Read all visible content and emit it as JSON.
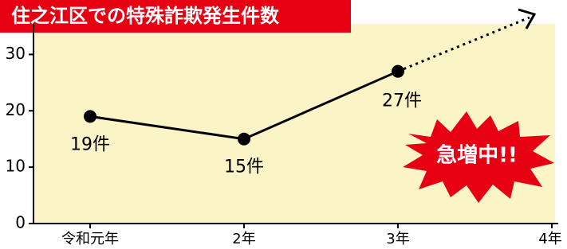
{
  "chart_data": {
    "type": "line",
    "title": "住之江区での特殊詐欺発生件数",
    "categories": [
      "令和元年",
      "2年",
      "3年",
      "4年"
    ],
    "values": [
      19,
      15,
      27,
      null
    ],
    "value_labels": [
      "19件",
      "15件",
      "27件",
      null
    ],
    "color": "#000000",
    "ylim": [
      0,
      35
    ],
    "yticks": [
      0,
      10,
      20,
      30
    ],
    "annotation": "急増中!!"
  }
}
